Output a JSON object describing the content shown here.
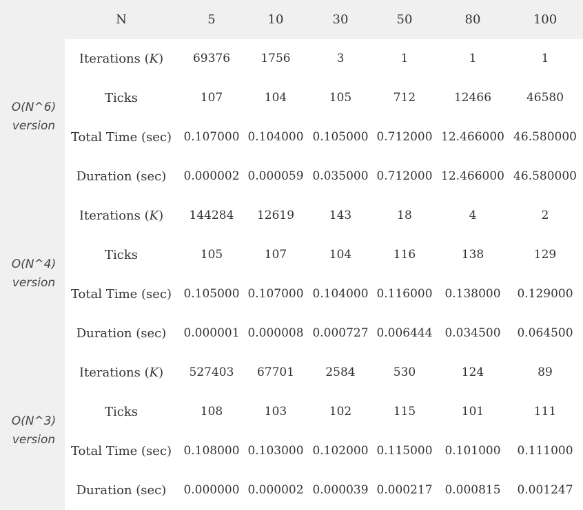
{
  "header": {
    "n_label": "N",
    "n_values": [
      "5",
      "10",
      "30",
      "50",
      "80",
      "100"
    ]
  },
  "groups": [
    {
      "name_line1": "O(N^6)",
      "name_line2": "version",
      "rows": [
        {
          "label_pre": "Iterations (",
          "label_k": "K",
          "label_post": ")",
          "values": [
            "69376",
            "1756",
            "3",
            "1",
            "1",
            "1"
          ]
        },
        {
          "label": "Ticks",
          "values": [
            "107",
            "104",
            "105",
            "712",
            "12466",
            "46580"
          ]
        },
        {
          "label": "Total Time (sec)",
          "values": [
            "0.107000",
            "0.104000",
            "0.105000",
            "0.712000",
            "12.466000",
            "46.580000"
          ]
        },
        {
          "label": "Duration (sec)",
          "values": [
            "0.000002",
            "0.000059",
            "0.035000",
            "0.712000",
            "12.466000",
            "46.580000"
          ]
        }
      ]
    },
    {
      "name_line1": "O(N^4)",
      "name_line2": "version",
      "rows": [
        {
          "label_pre": "Iterations (",
          "label_k": "K",
          "label_post": ")",
          "values": [
            "144284",
            "12619",
            "143",
            "18",
            "4",
            "2"
          ]
        },
        {
          "label": "Ticks",
          "values": [
            "105",
            "107",
            "104",
            "116",
            "138",
            "129"
          ]
        },
        {
          "label": "Total Time (sec)",
          "values": [
            "0.105000",
            "0.107000",
            "0.104000",
            "0.116000",
            "0.138000",
            "0.129000"
          ]
        },
        {
          "label": "Duration (sec)",
          "values": [
            "0.000001",
            "0.000008",
            "0.000727",
            "0.006444",
            "0.034500",
            "0.064500"
          ]
        }
      ]
    },
    {
      "name_line1": "O(N^3)",
      "name_line2": "version",
      "rows": [
        {
          "label_pre": "Iterations (",
          "label_k": "K",
          "label_post": ")",
          "values": [
            "527403",
            "67701",
            "2584",
            "530",
            "124",
            "89"
          ]
        },
        {
          "label": "Ticks",
          "values": [
            "108",
            "103",
            "102",
            "115",
            "101",
            "111"
          ]
        },
        {
          "label": "Total Time (sec)",
          "values": [
            "0.108000",
            "0.103000",
            "0.102000",
            "0.115000",
            "0.101000",
            "0.111000"
          ]
        },
        {
          "label": "Duration (sec)",
          "values": [
            "0.000000",
            "0.000002",
            "0.000039",
            "0.000217",
            "0.000815",
            "0.001247"
          ]
        }
      ]
    }
  ]
}
